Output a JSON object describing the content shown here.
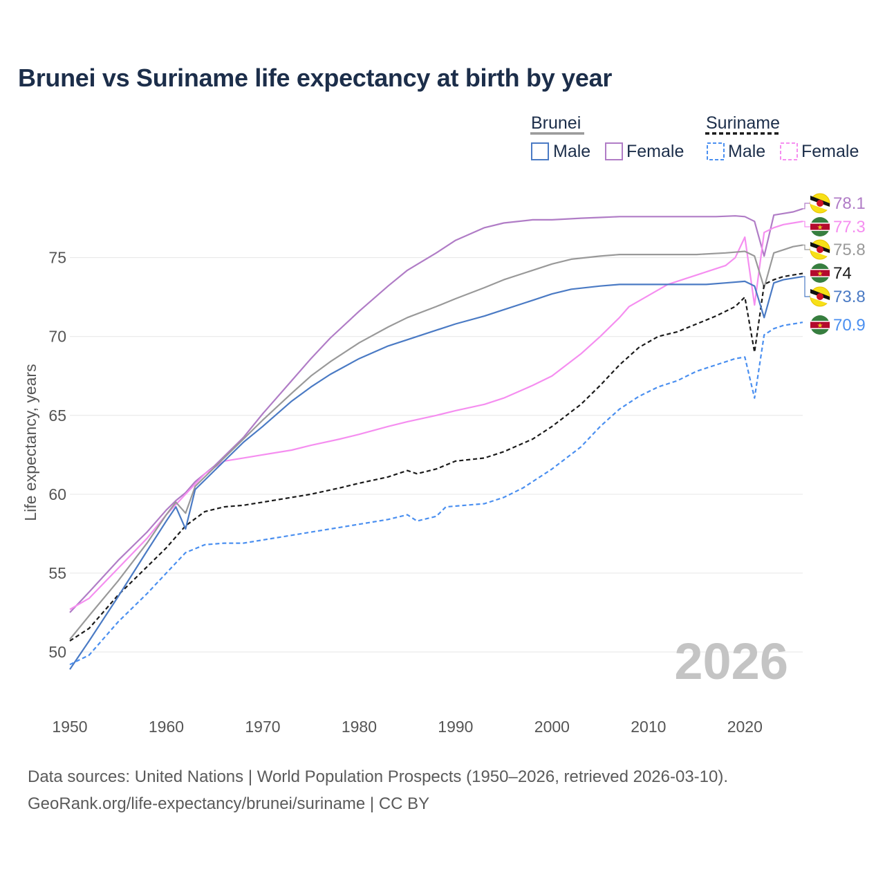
{
  "title": "Brunei vs Suriname life expectancy at birth by year",
  "sources": {
    "line1": "Data sources: United Nations | World Population Prospects (1950–2026, retrieved 2026-03-10).",
    "line2": "GeoRank.org/life-expectancy/brunei/suriname | CC BY"
  },
  "legend": {
    "brunei": "Brunei",
    "suriname": "Suriname",
    "male": "Male",
    "female": "Female"
  },
  "year_watermark": "2026",
  "colors": {
    "brunei_male": "#4a7ac4",
    "brunei_female": "#b07cc6",
    "brunei_total": "#999999",
    "suriname_male": "#4a8ff0",
    "suriname_female": "#f58ef0",
    "suriname_total": "#1a1a1a"
  },
  "chart_data": {
    "type": "line",
    "title": "Brunei vs Suriname life expectancy at birth by year",
    "xlabel": "",
    "ylabel": "Life expectancy, years",
    "xlim": [
      1950,
      2026
    ],
    "ylim": [
      47.5,
      79.5
    ],
    "x_ticks": [
      1950,
      1960,
      1970,
      1980,
      1990,
      2000,
      2010,
      2020
    ],
    "y_ticks": [
      50,
      55,
      60,
      65,
      70,
      75
    ],
    "grid": true,
    "series": [
      {
        "name": "Brunei Female",
        "country": "Brunei",
        "sex": "Female",
        "key": "brunei_female",
        "dashed": false,
        "end_label": "78.1",
        "points": [
          [
            1950,
            52.5
          ],
          [
            1952,
            53.8
          ],
          [
            1955,
            55.8
          ],
          [
            1958,
            57.6
          ],
          [
            1960,
            59.0
          ],
          [
            1961,
            59.6
          ],
          [
            1962,
            60.1
          ],
          [
            1963,
            60.8
          ],
          [
            1965,
            61.8
          ],
          [
            1968,
            63.6
          ],
          [
            1970,
            65.1
          ],
          [
            1973,
            67.2
          ],
          [
            1975,
            68.6
          ],
          [
            1977,
            69.9
          ],
          [
            1980,
            71.6
          ],
          [
            1983,
            73.2
          ],
          [
            1985,
            74.2
          ],
          [
            1988,
            75.3
          ],
          [
            1990,
            76.1
          ],
          [
            1993,
            76.9
          ],
          [
            1995,
            77.2
          ],
          [
            1998,
            77.4
          ],
          [
            2000,
            77.4
          ],
          [
            2003,
            77.5
          ],
          [
            2005,
            77.55
          ],
          [
            2007,
            77.6
          ],
          [
            2010,
            77.6
          ],
          [
            2015,
            77.6
          ],
          [
            2017,
            77.6
          ],
          [
            2019,
            77.65
          ],
          [
            2020,
            77.6
          ],
          [
            2021,
            77.3
          ],
          [
            2022,
            75.1
          ],
          [
            2023,
            77.7
          ],
          [
            2024,
            77.8
          ],
          [
            2025,
            77.9
          ],
          [
            2026,
            78.1
          ]
        ]
      },
      {
        "name": "Suriname Female",
        "country": "Suriname",
        "sex": "Female",
        "key": "suriname_female",
        "dashed": false,
        "end_label": "77.3",
        "points": [
          [
            1950,
            52.7
          ],
          [
            1952,
            53.4
          ],
          [
            1955,
            55.3
          ],
          [
            1958,
            57.2
          ],
          [
            1960,
            58.7
          ],
          [
            1962,
            60.0
          ],
          [
            1964,
            61.3
          ],
          [
            1966,
            62.1
          ],
          [
            1968,
            62.3
          ],
          [
            1970,
            62.5
          ],
          [
            1973,
            62.8
          ],
          [
            1975,
            63.1
          ],
          [
            1978,
            63.5
          ],
          [
            1980,
            63.8
          ],
          [
            1983,
            64.3
          ],
          [
            1985,
            64.6
          ],
          [
            1988,
            65.0
          ],
          [
            1990,
            65.3
          ],
          [
            1993,
            65.7
          ],
          [
            1995,
            66.1
          ],
          [
            1998,
            66.9
          ],
          [
            2000,
            67.5
          ],
          [
            2003,
            68.9
          ],
          [
            2005,
            70.0
          ],
          [
            2007,
            71.2
          ],
          [
            2008,
            71.9
          ],
          [
            2010,
            72.6
          ],
          [
            2012,
            73.3
          ],
          [
            2014,
            73.7
          ],
          [
            2016,
            74.1
          ],
          [
            2018,
            74.5
          ],
          [
            2019,
            75.0
          ],
          [
            2020,
            76.3
          ],
          [
            2021,
            72.0
          ],
          [
            2022,
            76.6
          ],
          [
            2023,
            76.9
          ],
          [
            2024,
            77.1
          ],
          [
            2025,
            77.2
          ],
          [
            2026,
            77.3
          ]
        ]
      },
      {
        "name": "Brunei",
        "country": "Brunei",
        "sex": "Total",
        "key": "brunei_total",
        "dashed": false,
        "end_label": "75.8",
        "points": [
          [
            1950,
            50.8
          ],
          [
            1952,
            52.3
          ],
          [
            1955,
            54.5
          ],
          [
            1958,
            56.9
          ],
          [
            1960,
            58.7
          ],
          [
            1961,
            59.5
          ],
          [
            1962,
            58.8
          ],
          [
            1963,
            60.5
          ],
          [
            1965,
            61.7
          ],
          [
            1968,
            63.5
          ],
          [
            1970,
            64.7
          ],
          [
            1973,
            66.4
          ],
          [
            1975,
            67.5
          ],
          [
            1977,
            68.4
          ],
          [
            1980,
            69.6
          ],
          [
            1983,
            70.6
          ],
          [
            1985,
            71.2
          ],
          [
            1988,
            71.9
          ],
          [
            1990,
            72.4
          ],
          [
            1993,
            73.1
          ],
          [
            1995,
            73.6
          ],
          [
            1998,
            74.2
          ],
          [
            2000,
            74.6
          ],
          [
            2002,
            74.9
          ],
          [
            2005,
            75.1
          ],
          [
            2007,
            75.2
          ],
          [
            2010,
            75.2
          ],
          [
            2013,
            75.2
          ],
          [
            2015,
            75.2
          ],
          [
            2018,
            75.3
          ],
          [
            2020,
            75.4
          ],
          [
            2021,
            75.1
          ],
          [
            2022,
            73.1
          ],
          [
            2023,
            75.3
          ],
          [
            2024,
            75.5
          ],
          [
            2025,
            75.7
          ],
          [
            2026,
            75.8
          ]
        ]
      },
      {
        "name": "Suriname",
        "country": "Suriname",
        "sex": "Total",
        "key": "suriname_total",
        "dashed": true,
        "end_label": "74",
        "points": [
          [
            1950,
            50.7
          ],
          [
            1952,
            51.5
          ],
          [
            1955,
            53.6
          ],
          [
            1958,
            55.4
          ],
          [
            1960,
            56.6
          ],
          [
            1962,
            58.0
          ],
          [
            1964,
            58.9
          ],
          [
            1966,
            59.2
          ],
          [
            1968,
            59.3
          ],
          [
            1970,
            59.5
          ],
          [
            1973,
            59.8
          ],
          [
            1975,
            60.0
          ],
          [
            1978,
            60.4
          ],
          [
            1980,
            60.7
          ],
          [
            1983,
            61.1
          ],
          [
            1985,
            61.5
          ],
          [
            1986,
            61.3
          ],
          [
            1988,
            61.6
          ],
          [
            1990,
            62.1
          ],
          [
            1993,
            62.3
          ],
          [
            1995,
            62.7
          ],
          [
            1998,
            63.5
          ],
          [
            2000,
            64.3
          ],
          [
            2003,
            65.7
          ],
          [
            2005,
            66.9
          ],
          [
            2007,
            68.2
          ],
          [
            2009,
            69.3
          ],
          [
            2011,
            70.0
          ],
          [
            2013,
            70.3
          ],
          [
            2015,
            70.8
          ],
          [
            2017,
            71.3
          ],
          [
            2019,
            71.9
          ],
          [
            2020,
            72.5
          ],
          [
            2021,
            69.0
          ],
          [
            2022,
            73.3
          ],
          [
            2023,
            73.6
          ],
          [
            2024,
            73.8
          ],
          [
            2025,
            73.9
          ],
          [
            2026,
            74.0
          ]
        ]
      },
      {
        "name": "Brunei Male",
        "country": "Brunei",
        "sex": "Male",
        "key": "brunei_male",
        "dashed": false,
        "end_label": "73.8",
        "points": [
          [
            1950,
            48.9
          ],
          [
            1952,
            50.7
          ],
          [
            1955,
            53.5
          ],
          [
            1958,
            56.4
          ],
          [
            1960,
            58.3
          ],
          [
            1961,
            59.2
          ],
          [
            1962,
            57.8
          ],
          [
            1963,
            60.3
          ],
          [
            1965,
            61.5
          ],
          [
            1968,
            63.3
          ],
          [
            1970,
            64.3
          ],
          [
            1973,
            65.9
          ],
          [
            1975,
            66.8
          ],
          [
            1977,
            67.6
          ],
          [
            1980,
            68.6
          ],
          [
            1983,
            69.4
          ],
          [
            1985,
            69.8
          ],
          [
            1988,
            70.4
          ],
          [
            1990,
            70.8
          ],
          [
            1993,
            71.3
          ],
          [
            1995,
            71.7
          ],
          [
            1998,
            72.3
          ],
          [
            2000,
            72.7
          ],
          [
            2002,
            73.0
          ],
          [
            2005,
            73.2
          ],
          [
            2007,
            73.3
          ],
          [
            2010,
            73.3
          ],
          [
            2013,
            73.3
          ],
          [
            2016,
            73.3
          ],
          [
            2018,
            73.4
          ],
          [
            2020,
            73.5
          ],
          [
            2021,
            73.2
          ],
          [
            2022,
            71.2
          ],
          [
            2023,
            73.4
          ],
          [
            2024,
            73.6
          ],
          [
            2025,
            73.7
          ],
          [
            2026,
            73.8
          ]
        ]
      },
      {
        "name": "Suriname Male",
        "country": "Suriname",
        "sex": "Male",
        "key": "suriname_male",
        "dashed": true,
        "end_label": "70.9",
        "points": [
          [
            1950,
            49.2
          ],
          [
            1952,
            49.8
          ],
          [
            1955,
            51.9
          ],
          [
            1958,
            53.7
          ],
          [
            1960,
            55.0
          ],
          [
            1962,
            56.3
          ],
          [
            1964,
            56.8
          ],
          [
            1966,
            56.9
          ],
          [
            1968,
            56.9
          ],
          [
            1970,
            57.1
          ],
          [
            1973,
            57.4
          ],
          [
            1975,
            57.6
          ],
          [
            1978,
            57.9
          ],
          [
            1980,
            58.1
          ],
          [
            1983,
            58.4
          ],
          [
            1985,
            58.7
          ],
          [
            1986,
            58.3
          ],
          [
            1988,
            58.6
          ],
          [
            1989,
            59.2
          ],
          [
            1991,
            59.3
          ],
          [
            1993,
            59.4
          ],
          [
            1995,
            59.8
          ],
          [
            1997,
            60.4
          ],
          [
            2000,
            61.6
          ],
          [
            2003,
            63.0
          ],
          [
            2005,
            64.3
          ],
          [
            2007,
            65.4
          ],
          [
            2009,
            66.2
          ],
          [
            2011,
            66.8
          ],
          [
            2013,
            67.2
          ],
          [
            2015,
            67.8
          ],
          [
            2017,
            68.2
          ],
          [
            2019,
            68.6
          ],
          [
            2020,
            68.7
          ],
          [
            2021,
            66.1
          ],
          [
            2022,
            70.1
          ],
          [
            2023,
            70.5
          ],
          [
            2024,
            70.7
          ],
          [
            2025,
            70.8
          ],
          [
            2026,
            70.9
          ]
        ]
      }
    ]
  }
}
